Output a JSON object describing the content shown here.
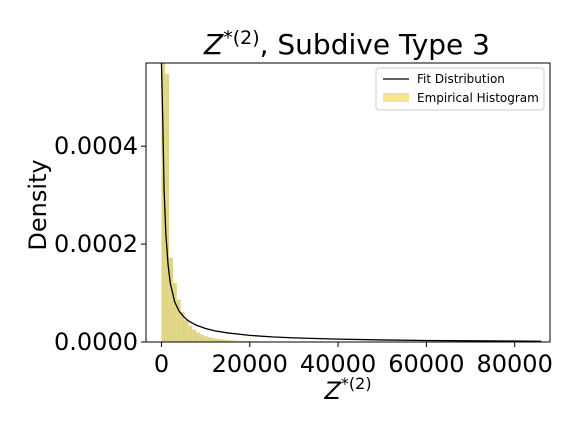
{
  "chart_data": {
    "type": "bar",
    "title": "Z*(2), Subdive Type 3",
    "title_parts": {
      "base": "Z",
      "sup": "*(2)",
      "rest": ", Subdive Type 3"
    },
    "xlabel_parts": {
      "base": "Z",
      "sup": "*(2)"
    },
    "ylabel": "Density",
    "xlim": [
      -3500,
      88000
    ],
    "ylim": [
      0,
      0.00057
    ],
    "x_ticks": [
      0,
      20000,
      40000,
      60000,
      80000
    ],
    "x_tick_labels": [
      "0",
      "20000",
      "40000",
      "60000",
      "80000"
    ],
    "y_ticks": [
      0,
      0.0002,
      0.0004
    ],
    "y_tick_labels": [
      "0.0000",
      "0.0002",
      "0.0004"
    ],
    "grid": false,
    "legend_position": "top-right",
    "legend": [
      {
        "label": "Fit Distribution",
        "kind": "line",
        "color": "#000000"
      },
      {
        "label": "Empirical Histogram",
        "kind": "patch",
        "color": "#f5e68a"
      }
    ],
    "histogram": {
      "name": "Empirical Histogram",
      "color": "#e0d585",
      "bin_width": 870,
      "bin_starts": [
        0,
        870,
        1740,
        2610,
        3480,
        4350,
        5220,
        6090,
        6960,
        7830,
        8700,
        9570,
        10440,
        11310,
        12180,
        13050,
        13920,
        14790,
        15660,
        16530,
        17400,
        18270,
        19140,
        20010,
        20880,
        21750,
        22620,
        23490,
        24360,
        25230,
        26100
      ],
      "values": [
        0.00057,
        0.000548,
        0.000172,
        0.000121,
        8.65e-05,
        6.15e-05,
        4.5e-05,
        3.35e-05,
        2.55e-05,
        1.95e-05,
        1.5e-05,
        1.2e-05,
        9.8e-06,
        8e-06,
        6.6e-06,
        5.5e-06,
        4.6e-06,
        3.9e-06,
        3.3e-06,
        2.8e-06,
        2.4e-06,
        2e-06,
        1.7e-06,
        1.5e-06,
        1.3e-06,
        1.1e-06,
        9e-07,
        8e-07,
        7e-07,
        6e-07,
        5e-07
      ]
    },
    "fit_curve": {
      "name": "Fit Distribution",
      "color": "#000000",
      "x": [
        0,
        300,
        600,
        1000,
        1500,
        2000,
        3000,
        4000,
        5000,
        6000,
        7000,
        8000,
        10000,
        12000,
        15000,
        20000,
        25000,
        30000,
        40000,
        50000,
        60000,
        70000,
        80000,
        86000
      ],
      "y": [
        0.00062,
        0.00045,
        0.00031,
        0.00022,
        0.000158,
        0.00012,
        8.2e-05,
        6.3e-05,
        5.2e-05,
        4.4e-05,
        3.85e-05,
        3.4e-05,
        2.75e-05,
        2.3e-05,
        1.85e-05,
        1.35e-05,
        1.05e-05,
        8.5e-06,
        5.8e-06,
        4.2e-06,
        3.1e-06,
        2.4e-06,
        1.9e-06,
        1.6e-06
      ]
    }
  }
}
